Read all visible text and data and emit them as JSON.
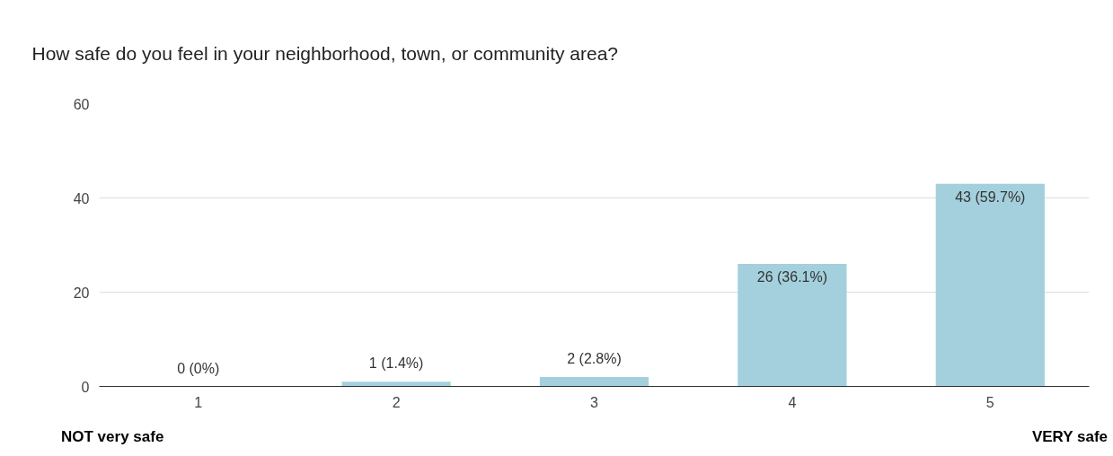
{
  "chart_data": {
    "type": "bar",
    "title": "How safe do you feel in your neighborhood, town, or community area?",
    "categories": [
      "1",
      "2",
      "3",
      "4",
      "5"
    ],
    "values": [
      0,
      1,
      2,
      26,
      43
    ],
    "value_labels": [
      "0 (0%)",
      "1 (1.4%)",
      "2 (2.8%)",
      "26 (36.1%)",
      "43 (59.7%)"
    ],
    "color": "#a3d0dc",
    "ylim": [
      0,
      60
    ],
    "yticks": [
      0,
      20,
      40,
      60
    ],
    "grid": "y",
    "annotations": [
      "NOT very safe",
      "VERY safe"
    ]
  }
}
